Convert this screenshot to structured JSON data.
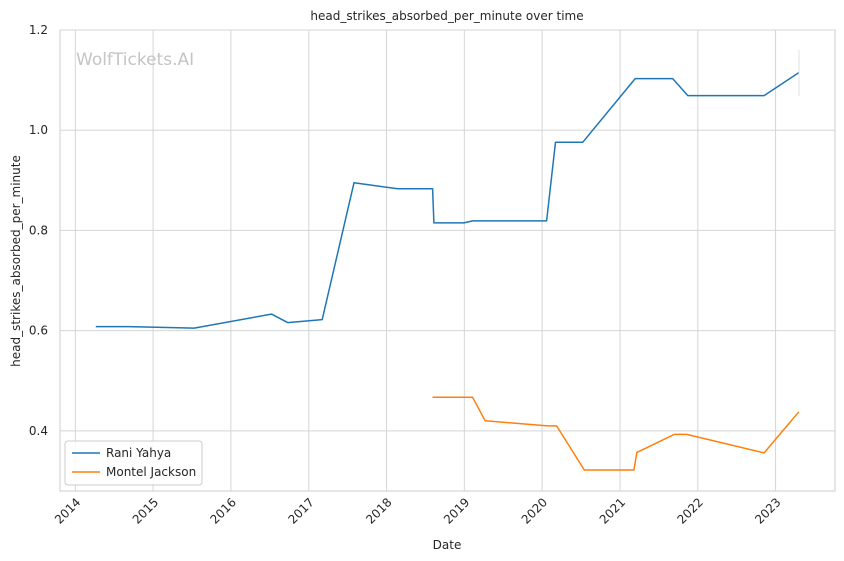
{
  "chart_data": {
    "type": "line",
    "title": "head_strikes_absorbed_per_minute over time",
    "xlabel": "Date",
    "ylabel": "head_strikes_absorbed_per_minute",
    "watermark": "WolfTickets.AI",
    "x_ticks": [
      "2014",
      "2015",
      "2016",
      "2017",
      "2018",
      "2019",
      "2020",
      "2021",
      "2022",
      "2023"
    ],
    "y_ticks": [
      "0.4",
      "0.6",
      "0.8",
      "1.0",
      "1.2"
    ],
    "xlim": [
      "2013-10-21",
      "2023-10-07"
    ],
    "ylim": [
      0.28,
      1.2
    ],
    "grid": true,
    "legend_position": "lower-left",
    "colors": {
      "Rani Yahya": "#1f77b4",
      "Montel Jackson": "#ff7f0e"
    },
    "series": [
      {
        "name": "Rani Yahya",
        "color": "#1f77b4",
        "points": [
          {
            "x": "2014-04-07",
            "y": 0.608
          },
          {
            "x": "2014-09-09",
            "y": 0.608
          },
          {
            "x": "2015-07-13",
            "y": 0.605
          },
          {
            "x": "2016-07-10",
            "y": 0.633
          },
          {
            "x": "2016-09-24",
            "y": 0.616
          },
          {
            "x": "2017-03-05",
            "y": 0.622
          },
          {
            "x": "2017-08-01",
            "y": 0.895
          },
          {
            "x": "2018-02-22",
            "y": 0.883
          },
          {
            "x": "2018-08-05",
            "y": 0.883
          },
          {
            "x": "2018-08-11",
            "y": 0.815
          },
          {
            "x": "2018-12-30",
            "y": 0.815
          },
          {
            "x": "2019-02-09",
            "y": 0.819
          },
          {
            "x": "2020-01-22",
            "y": 0.819
          },
          {
            "x": "2020-03-04",
            "y": 0.976
          },
          {
            "x": "2020-07-10",
            "y": 0.976
          },
          {
            "x": "2021-03-13",
            "y": 1.103
          },
          {
            "x": "2021-09-05",
            "y": 1.103
          },
          {
            "x": "2021-11-15",
            "y": 1.069
          },
          {
            "x": "2022-11-08",
            "y": 1.069
          },
          {
            "x": "2023-04-20",
            "y": 1.115
          }
        ]
      },
      {
        "name": "Montel Jackson",
        "color": "#ff7f0e",
        "points": [
          {
            "x": "2018-08-05",
            "y": 0.467
          },
          {
            "x": "2019-02-09",
            "y": 0.467
          },
          {
            "x": "2019-04-09",
            "y": 0.42
          },
          {
            "x": "2020-01-26",
            "y": 0.41
          },
          {
            "x": "2020-03-09",
            "y": 0.41
          },
          {
            "x": "2020-07-17",
            "y": 0.322
          },
          {
            "x": "2021-03-07",
            "y": 0.322
          },
          {
            "x": "2021-03-21",
            "y": 0.357
          },
          {
            "x": "2021-09-12",
            "y": 0.393
          },
          {
            "x": "2021-11-10",
            "y": 0.393
          },
          {
            "x": "2022-11-08",
            "y": 0.356
          },
          {
            "x": "2023-04-20",
            "y": 0.438
          }
        ]
      }
    ]
  }
}
